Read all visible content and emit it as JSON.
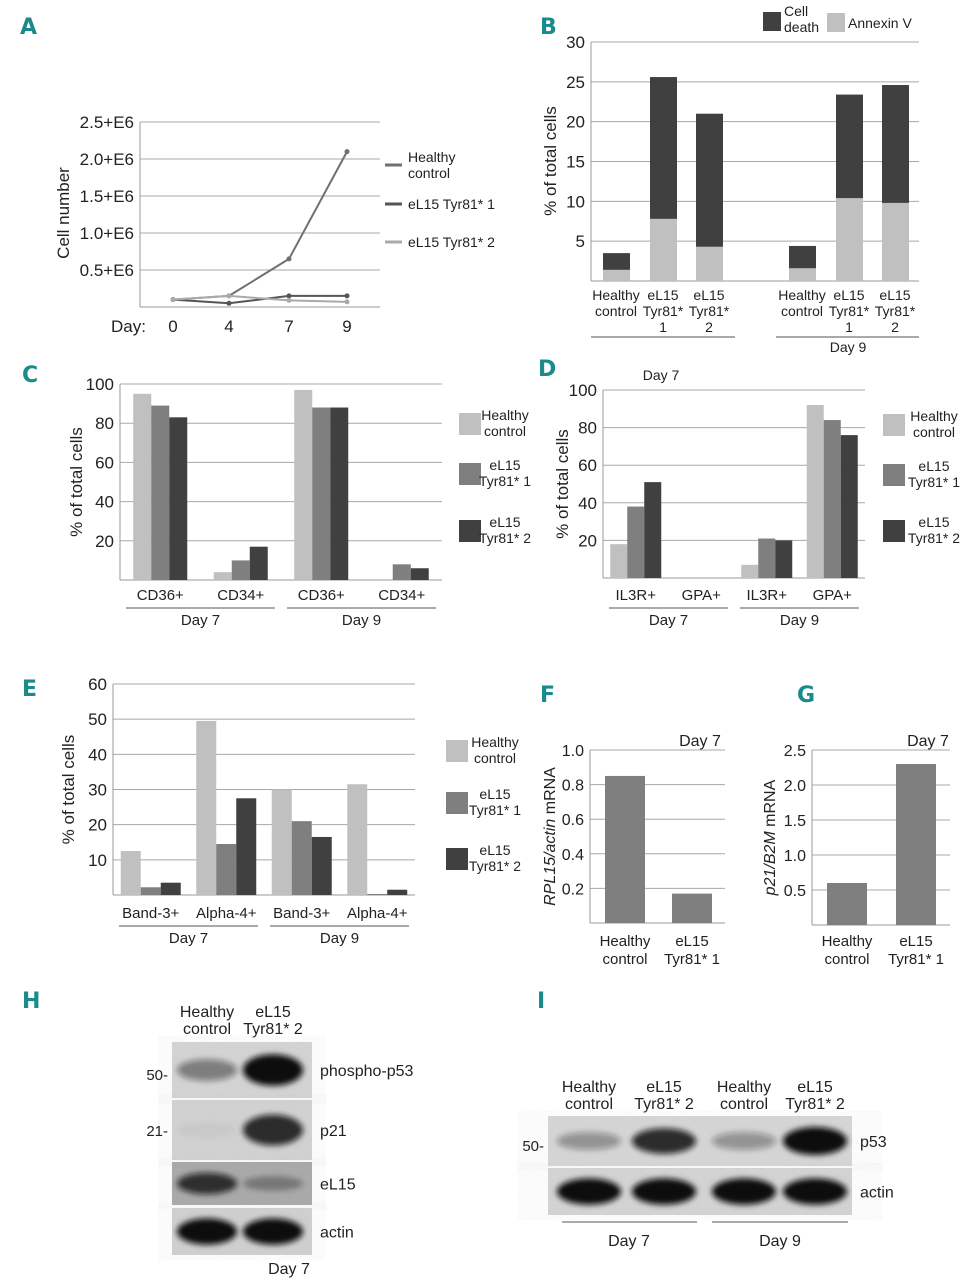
{
  "panel_labels": [
    "A",
    "B",
    "C",
    "D",
    "E",
    "F",
    "G",
    "H",
    "I"
  ],
  "colors": {
    "healthy": "#c0c0c0",
    "el15_1": "#7f7f7f",
    "el15_2": "#404040",
    "panel_label": "#1a8a8a",
    "cell_death": "#404040",
    "annexin": "#c0c0c0"
  },
  "chart_data": [
    {
      "panel": "A",
      "type": "line",
      "ylabel": "Cell number",
      "x_prefix": "Day:",
      "x": [
        "0",
        "4",
        "7",
        "9"
      ],
      "ylim": [
        0,
        2500000
      ],
      "yticks": [
        500000,
        1000000,
        1500000,
        2000000,
        2500000
      ],
      "ytick_labels": [
        "0.5+E6",
        "1.0+E6",
        "1.5+E6",
        "2.0+E6",
        "2.5+E6"
      ],
      "grid": true,
      "legend": "right",
      "series": [
        {
          "name_lines": [
            "Healthy",
            "control"
          ],
          "values": [
            100000,
            150000,
            650000,
            2100000
          ],
          "color": "#707070"
        },
        {
          "name_lines": [
            "eL15 Tyr81* 1"
          ],
          "values": [
            100000,
            50000,
            150000,
            150000
          ],
          "color": "#555555"
        },
        {
          "name_lines": [
            "eL15 Tyr81* 2"
          ],
          "values": [
            100000,
            150000,
            90000,
            70000
          ],
          "color": "#aaaaaa"
        }
      ]
    },
    {
      "panel": "B",
      "type": "stacked-bar",
      "ylabel": "% of total cells",
      "ylim": [
        0,
        30
      ],
      "yticks": [
        5,
        10,
        15,
        20,
        25,
        30
      ],
      "ytick_labels": [
        "5",
        "10",
        "15",
        "20",
        "25",
        "30"
      ],
      "grid": true,
      "legend": "top-right",
      "categories": [
        [
          "Healthy",
          "control"
        ],
        [
          "eL15",
          "Tyr81*",
          "1"
        ],
        [
          "eL15",
          "Tyr81*",
          "2"
        ],
        [
          "Healthy",
          "control"
        ],
        [
          "eL15",
          "Tyr81*",
          "1"
        ],
        [
          "eL15",
          "Tyr81*",
          "2"
        ]
      ],
      "groups": [
        "",
        "Day 9"
      ],
      "series": [
        {
          "name_lines": [
            "Annexin V"
          ],
          "values": [
            1.4,
            7.8,
            4.3,
            1.6,
            10.4,
            9.8
          ]
        },
        {
          "name_lines": [
            "Cell",
            "death"
          ],
          "values": [
            2.1,
            17.8,
            16.7,
            2.8,
            13.0,
            14.8
          ]
        }
      ]
    },
    {
      "panel": "C",
      "type": "bar",
      "ylabel": "% of total cells",
      "ylim": [
        0,
        100
      ],
      "yticks": [
        20,
        40,
        60,
        80,
        100
      ],
      "ytick_labels": [
        "20",
        "40",
        "60",
        "80",
        "100"
      ],
      "grid": true,
      "legend": "right",
      "categories": [
        "CD36+",
        "CD34+",
        "CD36+",
        "CD34+"
      ],
      "groups": [
        "Day 7",
        "Day 9"
      ],
      "series": [
        {
          "name_lines": [
            "Healthy",
            "control"
          ],
          "values": [
            95,
            4,
            97,
            0
          ]
        },
        {
          "name_lines": [
            "eL15",
            "Tyr81* 1"
          ],
          "values": [
            89,
            10,
            88,
            8
          ]
        },
        {
          "name_lines": [
            "eL15",
            "Tyr81* 2"
          ],
          "values": [
            83,
            17,
            88,
            6
          ]
        }
      ]
    },
    {
      "panel": "D",
      "type": "bar",
      "title": "Day 7",
      "ylabel": "% of total cells",
      "ylim": [
        0,
        100
      ],
      "yticks": [
        20,
        40,
        60,
        80,
        100
      ],
      "ytick_labels": [
        "20",
        "40",
        "60",
        "80",
        "100"
      ],
      "grid": true,
      "legend": "right",
      "categories": [
        "IL3R+",
        "GPA+",
        "IL3R+",
        "GPA+"
      ],
      "groups": [
        "Day 7",
        "Day 9"
      ],
      "series": [
        {
          "name_lines": [
            "Healthy",
            "control"
          ],
          "values": [
            18,
            0,
            7,
            92
          ]
        },
        {
          "name_lines": [
            "eL15",
            "Tyr81* 1"
          ],
          "values": [
            38,
            0,
            21,
            84
          ]
        },
        {
          "name_lines": [
            "eL15",
            "Tyr81* 2"
          ],
          "values": [
            51,
            0,
            20,
            76
          ]
        }
      ]
    },
    {
      "panel": "E",
      "type": "bar",
      "ylabel": "% of total cells",
      "ylim": [
        0,
        60
      ],
      "yticks": [
        10,
        20,
        30,
        40,
        50,
        60
      ],
      "ytick_labels": [
        "10",
        "20",
        "30",
        "40",
        "50",
        "60"
      ],
      "grid": true,
      "legend": "right",
      "categories": [
        "Band-3+",
        "Alpha-4+",
        "Band-3+",
        "Alpha-4+"
      ],
      "groups": [
        "Day 7",
        "Day 9"
      ],
      "series": [
        {
          "name_lines": [
            "Healthy",
            "control"
          ],
          "values": [
            12.5,
            49.5,
            30,
            31.5
          ]
        },
        {
          "name_lines": [
            "eL15",
            "Tyr81* 1"
          ],
          "values": [
            2.2,
            14.5,
            21,
            0.3
          ]
        },
        {
          "name_lines": [
            "eL15",
            "Tyr81* 2"
          ],
          "values": [
            3.5,
            27.5,
            16.5,
            1.5
          ]
        }
      ]
    },
    {
      "panel": "F",
      "type": "bar",
      "title": "Day 7",
      "ylabel_italic": "RPL15/actin",
      "ylabel_rest": " mRNA",
      "ylim": [
        0,
        1.0
      ],
      "yticks": [
        0.2,
        0.4,
        0.6,
        0.8,
        1.0
      ],
      "ytick_labels": [
        "0.2",
        "0.4",
        "0.6",
        "0.8",
        "1.0"
      ],
      "grid": true,
      "categories": [
        [
          "Healthy",
          "control"
        ],
        [
          "eL15",
          "Tyr81* 1"
        ]
      ],
      "values": [
        0.85,
        0.17
      ]
    },
    {
      "panel": "G",
      "type": "bar",
      "title": "Day 7",
      "ylabel_italic": "p21/B2M",
      "ylabel_rest": " mRNA",
      "ylim": [
        0,
        2.5
      ],
      "yticks": [
        0.5,
        1.0,
        1.5,
        2.0,
        2.5
      ],
      "ytick_labels": [
        "0.5",
        "1.0",
        "1.5",
        "2.0",
        "2.5"
      ],
      "grid": true,
      "categories": [
        [
          "Healthy",
          "control"
        ],
        [
          "eL15",
          "Tyr81* 1"
        ]
      ],
      "values": [
        0.6,
        2.3
      ]
    }
  ],
  "blot_h": {
    "columns": [
      [
        "Healthy",
        "control"
      ],
      [
        "eL15",
        "Tyr81* 2"
      ]
    ],
    "rows": [
      {
        "label": "phospho-p53",
        "marker": "50-",
        "intensity": [
          0.45,
          1.0
        ]
      },
      {
        "label": "p21",
        "marker": "21-",
        "intensity": [
          0.04,
          0.85
        ]
      },
      {
        "label": "eL15",
        "marker": "",
        "intensity": [
          0.8,
          0.3
        ]
      },
      {
        "label": "actin",
        "marker": "",
        "intensity": [
          1.0,
          1.0
        ]
      }
    ],
    "footer": "Day 7"
  },
  "blot_i": {
    "columns": [
      [
        "Healthy",
        "control"
      ],
      [
        "eL15",
        "Tyr81* 2"
      ],
      [
        "Healthy",
        "control"
      ],
      [
        "eL15",
        "Tyr81* 2"
      ]
    ],
    "rows": [
      {
        "label": "p53",
        "marker": "50-",
        "intensity": [
          0.35,
          0.85,
          0.35,
          1.0
        ]
      },
      {
        "label": "actin",
        "marker": "",
        "intensity": [
          1.0,
          1.0,
          1.0,
          1.0
        ]
      }
    ],
    "groups": [
      "Day 7",
      "Day 9"
    ]
  }
}
